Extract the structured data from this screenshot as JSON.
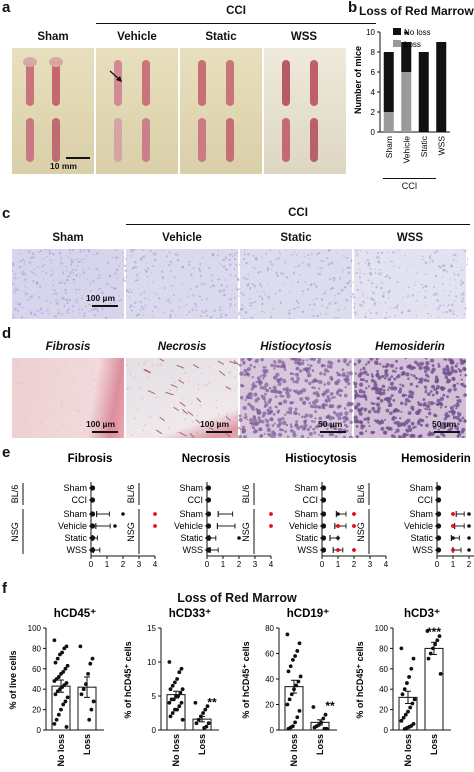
{
  "panel_a": {
    "label": "a",
    "group": "CCI",
    "columns": [
      "Sham",
      "Vehicle",
      "Static",
      "WSS"
    ],
    "scale_bar": "10 mm"
  },
  "panel_b": {
    "label": "b",
    "title": "Loss of Red Marrow",
    "marker": "*",
    "group": "CCI"
  },
  "panel_c": {
    "label": "c",
    "group": "CCI",
    "columns": [
      "Sham",
      "Vehicle",
      "Static",
      "WSS"
    ],
    "scale_bar": "100 µm"
  },
  "panel_d": {
    "label": "d",
    "columns": [
      "Fibrosis",
      "Necrosis",
      "Histiocytosis",
      "Hemosiderin"
    ],
    "scale_bars": [
      "100 µm",
      "100 µm",
      "50 µm",
      "50 µm"
    ]
  },
  "panel_e": {
    "label": "e",
    "titles": [
      "Fibrosis",
      "Necrosis",
      "Histiocytosis",
      "Hemosiderin"
    ],
    "strain_groups": [
      "BL/6",
      "NSG"
    ],
    "rows": [
      "Sham",
      "CCI",
      "Sham",
      "Vehicle",
      "Static",
      "WSS"
    ],
    "x_ticks": [
      "0",
      "1",
      "2",
      "3",
      "4"
    ]
  },
  "panel_f": {
    "label": "f",
    "title": "Loss of Red Marrow",
    "subtitles": [
      "hCD45⁺",
      "hCD33⁺",
      "hCD19⁺",
      "hCD3⁺"
    ],
    "ylabels": [
      "% of live cells",
      "% of hCD45⁺ cells",
      "% of hCD45⁺ cells",
      "% of hCD45⁺ cells"
    ],
    "stars": [
      "",
      "**",
      "**",
      "***"
    ]
  },
  "chart_data": [
    {
      "type": "bar",
      "title": "Loss of Red Marrow",
      "categories": [
        "Sham",
        "Vehicle",
        "Static",
        "WSS"
      ],
      "category_group": "CCI",
      "ylabel": "Number of mice",
      "ylim": [
        0,
        10
      ],
      "yticks": [
        0,
        2,
        4,
        6,
        8,
        10
      ],
      "stacked": true,
      "legend": "top-right",
      "series": [
        {
          "name": "Loss",
          "color": "#9a9a9a",
          "values": [
            2,
            6,
            0,
            0
          ]
        },
        {
          "name": "No loss",
          "color": "#111111",
          "values": [
            6,
            3,
            8,
            9
          ]
        }
      ],
      "annotations": [
        {
          "category": "Vehicle",
          "text": "*"
        }
      ]
    },
    {
      "type": "scatter",
      "title": "Fibrosis",
      "xlim": [
        0,
        4
      ],
      "rows": [
        "Sham",
        "CCI",
        "Sham",
        "Vehicle",
        "Static",
        "WSS"
      ],
      "means": [
        0,
        0,
        0.35,
        0.3,
        0.1,
        0.15
      ],
      "errors": [
        0,
        0,
        0.8,
        0.9,
        0.3,
        0.4
      ],
      "outliers": [
        [],
        [],
        [
          2
        ],
        [
          1.5
        ],
        [],
        []
      ],
      "red_points": [
        [],
        [],
        [
          4
        ],
        [
          4
        ],
        [],
        []
      ]
    },
    {
      "type": "scatter",
      "title": "Necrosis",
      "xlim": [
        0,
        4
      ],
      "rows": [
        "Sham",
        "CCI",
        "Sham",
        "Vehicle",
        "Static",
        "WSS"
      ],
      "means": [
        0,
        0,
        0.7,
        0.65,
        0.15,
        0.2
      ],
      "errors": [
        0,
        0,
        0.9,
        1.1,
        0.4,
        0.5
      ],
      "outliers": [
        [],
        [],
        [],
        [],
        [
          2
        ],
        []
      ],
      "red_points": [
        [],
        [],
        [
          4
        ],
        [
          4
        ],
        [],
        []
      ]
    },
    {
      "type": "scatter",
      "title": "Histiocytosis",
      "xlim": [
        0,
        4
      ],
      "rows": [
        "Sham",
        "CCI",
        "Sham",
        "Vehicle",
        "Static",
        "WSS"
      ],
      "means": [
        0,
        0,
        0.9,
        0.8,
        0.5,
        0.7
      ],
      "errors": [
        0,
        0,
        0.6,
        0.7,
        0.5,
        0.6
      ],
      "outliers": [
        [],
        [],
        [
          1,
          2
        ],
        [
          1,
          2
        ],
        [
          1
        ],
        [
          1,
          2
        ]
      ],
      "red_points": [
        [],
        [],
        [
          2
        ],
        [
          1,
          2
        ],
        [],
        [
          1,
          2
        ]
      ]
    },
    {
      "type": "scatter",
      "title": "Hemosiderin",
      "xlim": [
        0,
        4
      ],
      "rows": [
        "Sham",
        "CCI",
        "Sham",
        "Vehicle",
        "Static",
        "WSS"
      ],
      "means": [
        0,
        0,
        1.2,
        1.1,
        0.9,
        1.0
      ],
      "errors": [
        0,
        0,
        0.5,
        0.6,
        0.5,
        0.5
      ],
      "outliers": [
        [],
        [],
        [
          1,
          2
        ],
        [
          1,
          2,
          3
        ],
        [
          1,
          2
        ],
        [
          1,
          2
        ]
      ],
      "red_points": [
        [],
        [],
        [
          1
        ],
        [
          1,
          3
        ],
        [],
        [
          1
        ]
      ]
    },
    {
      "type": "bar",
      "title": "hCD45⁺",
      "categories": [
        "No loss",
        "Loss"
      ],
      "ylabel": "% of live cells",
      "ylim": [
        0,
        100
      ],
      "yticks": [
        0,
        20,
        40,
        60,
        80,
        100
      ],
      "values": [
        43,
        42
      ],
      "errors": [
        6,
        10
      ],
      "points": [
        [
          88,
          82,
          80,
          76,
          74,
          70,
          66,
          63,
          60,
          57,
          55,
          52,
          50,
          48,
          46,
          44,
          42,
          40,
          38,
          35,
          32,
          28,
          25,
          20,
          15,
          10,
          6,
          3
        ],
        [
          82,
          70,
          65,
          55,
          45,
          40,
          35,
          28,
          20,
          10
        ]
      ]
    },
    {
      "type": "bar",
      "title": "hCD33⁺",
      "categories": [
        "No loss",
        "Loss"
      ],
      "ylabel": "% of hCD45⁺ cells",
      "ylim": [
        0,
        15
      ],
      "yticks": [
        0,
        5,
        10,
        15
      ],
      "values": [
        5.2,
        1.6
      ],
      "errors": [
        0.5,
        0.4
      ],
      "annotations": [
        {
          "category": "Loss",
          "text": "**"
        }
      ],
      "points": [
        [
          10,
          9,
          8.5,
          7.5,
          7,
          6.5,
          6,
          6,
          5.5,
          5,
          5,
          4.5,
          4.5,
          4,
          4,
          3.5,
          3,
          3,
          2.5,
          2,
          1.5
        ],
        [
          4,
          3.5,
          3,
          2.5,
          2,
          1.5,
          1,
          1,
          0.5,
          0.3
        ]
      ]
    },
    {
      "type": "bar",
      "title": "hCD19⁺",
      "categories": [
        "No loss",
        "Loss"
      ],
      "ylabel": "% of hCD45⁺ cells",
      "ylim": [
        0,
        80
      ],
      "yticks": [
        0,
        20,
        40,
        60,
        80
      ],
      "values": [
        34,
        6
      ],
      "errors": [
        5,
        2
      ],
      "annotations": [
        {
          "category": "Loss",
          "text": "**"
        }
      ],
      "points": [
        [
          75,
          68,
          62,
          58,
          55,
          50,
          46,
          42,
          38,
          35,
          32,
          28,
          24,
          20,
          15,
          10,
          6,
          3,
          2,
          1
        ],
        [
          18,
          12,
          9,
          6,
          4,
          3,
          2,
          1,
          1
        ]
      ]
    },
    {
      "type": "bar",
      "title": "hCD3⁺",
      "categories": [
        "No loss",
        "Loss"
      ],
      "ylabel": "% of hCD45⁺ cells",
      "ylim": [
        0,
        100
      ],
      "yticks": [
        0,
        20,
        40,
        60,
        80,
        100
      ],
      "values": [
        32,
        80
      ],
      "errors": [
        6,
        6
      ],
      "annotations": [
        {
          "category": "Loss",
          "text": "***"
        }
      ],
      "points": [
        [
          80,
          70,
          60,
          52,
          46,
          40,
          35,
          30,
          26,
          22,
          18,
          15,
          12,
          9,
          6,
          4,
          3,
          2,
          1
        ],
        [
          97,
          92,
          88,
          84,
          80,
          75,
          70,
          55
        ]
      ]
    }
  ]
}
